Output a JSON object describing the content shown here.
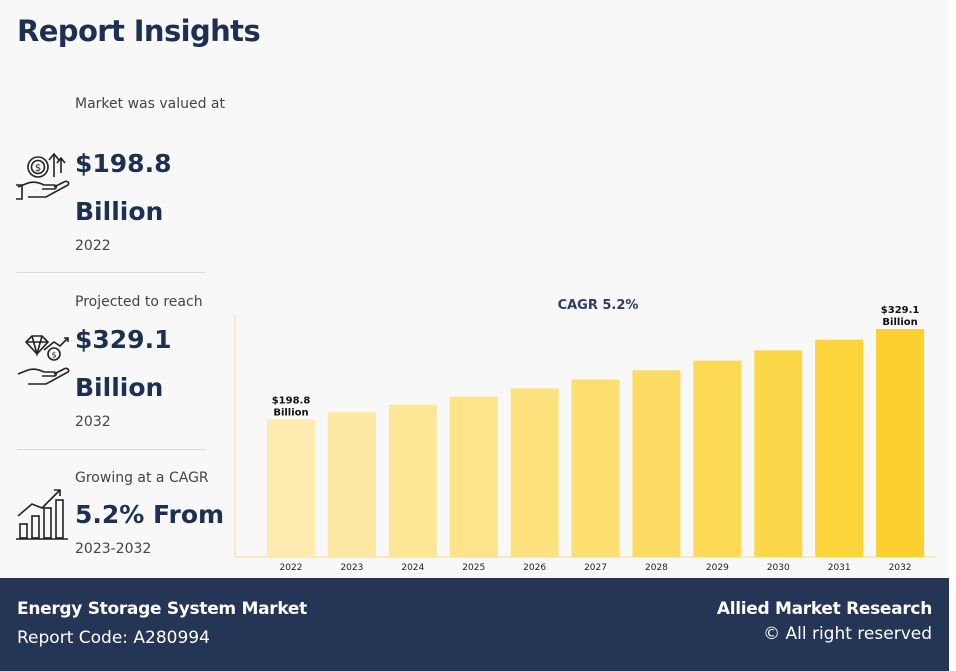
{
  "header": {
    "title": "Report Insights"
  },
  "stats": [
    {
      "caption": "Market was valued at",
      "value": "$198.8",
      "unit": "Billion",
      "year": "2022"
    },
    {
      "caption": "Projected to reach",
      "value": "$329.1",
      "unit": "Billion",
      "year": "2032"
    },
    {
      "caption": "Growing at a CAGR",
      "value": "5.2% From",
      "unit": "",
      "year": "2023-2032"
    }
  ],
  "icons": [
    "hand-coin-icon",
    "hand-diamond-icon",
    "growth-bars-icon"
  ],
  "chart_data": {
    "type": "bar",
    "title": "CAGR 5.2%",
    "xlabel": "",
    "ylabel": "",
    "categories": [
      "2022",
      "2023",
      "2024",
      "2025",
      "2026",
      "2027",
      "2028",
      "2029",
      "2030",
      "2031",
      "2032"
    ],
    "values": [
      198.8,
      209.1,
      220.0,
      231.5,
      243.5,
      256.2,
      269.5,
      283.5,
      298.3,
      313.8,
      329.1
    ],
    "data_labels": [
      {
        "index": 0,
        "line1": "$198.8",
        "line2": "Billion"
      },
      {
        "index": 10,
        "line1": "$329.1",
        "line2": "Billion"
      }
    ],
    "ylim": [
      0,
      345
    ],
    "grid": false,
    "bar_colors": [
      "#fdebb0",
      "#fcd12f"
    ]
  },
  "footer": {
    "report_name": "Energy Storage System Market",
    "report_code": "Report Code: A280994",
    "brand": "Allied Market Research",
    "rights": "© All right reserved"
  }
}
